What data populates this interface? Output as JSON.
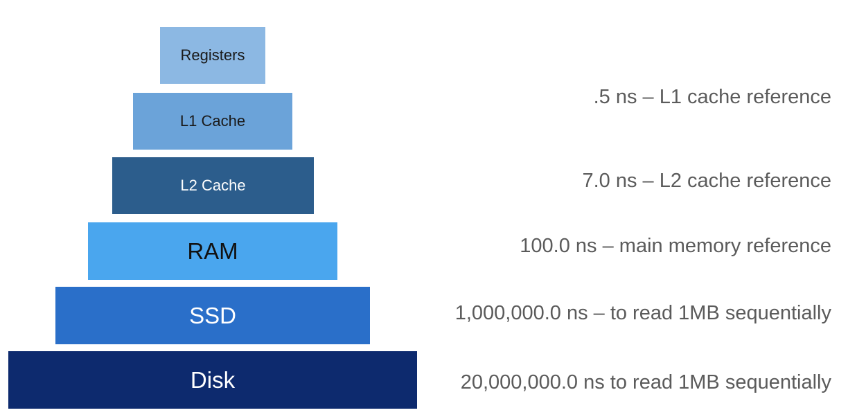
{
  "pyramid": {
    "tiers": [
      {
        "id": "registers",
        "label": "Registers",
        "fill": "#8cb8e3",
        "text_color": "#1a1a1a"
      },
      {
        "id": "l1",
        "label": "L1 Cache",
        "fill": "#6ba3d9",
        "text_color": "#1a1a1a"
      },
      {
        "id": "l2",
        "label": "L2 Cache",
        "fill": "#2c5d8c",
        "text_color": "#ffffff"
      },
      {
        "id": "ram",
        "label": "RAM",
        "fill": "#4aa6ee",
        "text_color": "#111111"
      },
      {
        "id": "ssd",
        "label": "SSD",
        "fill": "#2a6fc9",
        "text_color": "#ffffff"
      },
      {
        "id": "disk",
        "label": "Disk",
        "fill": "#0d2a6e",
        "text_color": "#ffffff"
      }
    ]
  },
  "latency_notes": {
    "l1": ".5 ns – L1 cache reference",
    "l2": "7.0 ns – L2 cache reference",
    "ram": "100.0 ns – main memory reference",
    "ssd": "1,000,000.0 ns – to read 1MB sequentially",
    "disk": "20,000,000.0 ns to read 1MB sequentially"
  }
}
